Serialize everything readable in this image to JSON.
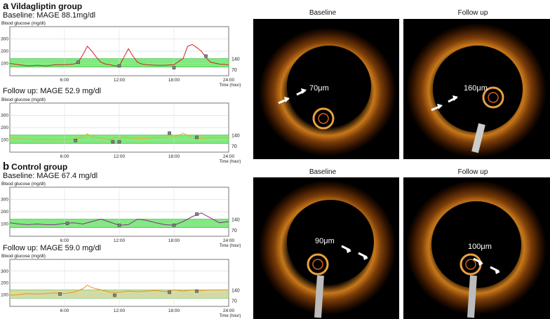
{
  "figure": {
    "panel_a": {
      "letter": "a",
      "group": "Vildagliptin group",
      "baseline_title": "Baseline: MAGE 88.1mg/dl",
      "followup_title": "Follow up: MAGE 52.9 mg/dl",
      "oct_baseline_label": "Baseline",
      "oct_followup_label": "Follow up",
      "oct_baseline_measure": "70μm",
      "oct_followup_measure": "160μm"
    },
    "panel_b": {
      "letter": "b",
      "group": "Control group",
      "baseline_title": "Baseline: MAGE 67.4 mg/dl",
      "followup_title": "Follow up: MAGE 59.0 mg/dl",
      "oct_baseline_label": "Baseline",
      "oct_followup_label": "Follow up",
      "oct_baseline_measure": "90μm",
      "oct_followup_measure": "100μm"
    },
    "axis": {
      "ylabel": "Blood glucose (mg/dl)",
      "xlabel": "Time (hour)",
      "yticks": [
        "100",
        "200",
        "300"
      ],
      "xticks": [
        "6:00",
        "12:00",
        "18:00",
        "24:00"
      ],
      "band_labels": [
        "140",
        "70"
      ]
    }
  },
  "chart_data": [
    {
      "type": "line",
      "title": "Baseline: MAGE 88.1mg/dl",
      "xlabel": "Time (hour)",
      "ylabel": "Blood glucose (mg/dl)",
      "xlim": [
        0,
        24
      ],
      "ylim": [
        0,
        400
      ],
      "target_range": [
        70,
        140
      ],
      "line_color": "#d42020",
      "band_color": "#7fea7f",
      "x": [
        0,
        1,
        2,
        3,
        4,
        5,
        6,
        7,
        7.5,
        8,
        8.5,
        9,
        9.5,
        10,
        10.5,
        11,
        11.5,
        12,
        12.5,
        13,
        13.5,
        14,
        14.5,
        15,
        16,
        17,
        18,
        19,
        19.5,
        20,
        20.5,
        21,
        21.5,
        22,
        23,
        24
      ],
      "y": [
        100,
        90,
        80,
        85,
        80,
        90,
        90,
        95,
        110,
        170,
        240,
        200,
        150,
        110,
        95,
        90,
        80,
        80,
        150,
        220,
        160,
        110,
        95,
        90,
        85,
        85,
        90,
        140,
        240,
        255,
        230,
        200,
        150,
        110,
        95,
        90
      ],
      "markers": [
        {
          "x": 7.5,
          "y": 110
        },
        {
          "x": 12,
          "y": 80
        },
        {
          "x": 18,
          "y": 65
        },
        {
          "x": 21.5,
          "y": 160
        }
      ]
    },
    {
      "type": "line",
      "title": "Follow up: MAGE 52.9 mg/dl",
      "xlabel": "Time (hour)",
      "ylabel": "Blood glucose (mg/dl)",
      "xlim": [
        0,
        24
      ],
      "ylim": [
        0,
        400
      ],
      "target_range": [
        70,
        140
      ],
      "line_color": "#e8b020",
      "band_color": "#7fea7f",
      "x": [
        0,
        1,
        2,
        3,
        4,
        5,
        6,
        7,
        8,
        8.5,
        9,
        10,
        11,
        11.5,
        12,
        12.5,
        13,
        14,
        15,
        16,
        17,
        17.5,
        18,
        19,
        20,
        21,
        22,
        23,
        24
      ],
      "y": [
        110,
        108,
        105,
        100,
        102,
        100,
        100,
        105,
        120,
        150,
        125,
        115,
        100,
        120,
        115,
        125,
        118,
        110,
        112,
        120,
        118,
        140,
        120,
        155,
        120,
        110,
        120,
        118,
        120
      ],
      "markers": [
        {
          "x": 7.2,
          "y": 95
        },
        {
          "x": 11.3,
          "y": 85
        },
        {
          "x": 12,
          "y": 85
        },
        {
          "x": 17.5,
          "y": 155
        },
        {
          "x": 20.5,
          "y": 120
        }
      ]
    },
    {
      "type": "line",
      "title": "Baseline: MAGE 67.4 mg/dl",
      "xlabel": "Time (hour)",
      "ylabel": "Blood glucose (mg/dl)",
      "xlim": [
        0,
        24
      ],
      "ylim": [
        0,
        400
      ],
      "target_range": [
        70,
        140
      ],
      "line_color": "#8a2a8a",
      "band_color": "#7fea7f",
      "x": [
        0,
        1,
        2,
        3,
        4,
        5,
        6,
        7,
        8,
        9,
        10,
        11,
        12,
        13,
        14,
        15,
        16,
        17,
        18,
        19,
        20,
        21,
        22,
        23,
        24
      ],
      "y": [
        110,
        100,
        95,
        100,
        95,
        95,
        105,
        110,
        100,
        120,
        140,
        115,
        90,
        95,
        140,
        130,
        110,
        95,
        90,
        120,
        160,
        190,
        150,
        110,
        120
      ],
      "markers": [
        {
          "x": 6.3,
          "y": 105
        },
        {
          "x": 12,
          "y": 90
        },
        {
          "x": 18,
          "y": 90
        },
        {
          "x": 20.5,
          "y": 180
        }
      ]
    },
    {
      "type": "line",
      "title": "Follow up: MAGE 59.0 mg/dl",
      "xlabel": "Time (hour)",
      "ylabel": "Blood glucose (mg/dl)",
      "xlim": [
        0,
        24
      ],
      "ylim": [
        0,
        400
      ],
      "target_range": [
        70,
        140
      ],
      "line_color": "#f0901a",
      "band_color": "#d4dc9e",
      "x": [
        0,
        1,
        2,
        3,
        4,
        5,
        6,
        7,
        8,
        8.5,
        9,
        10,
        11,
        12,
        13,
        14,
        15,
        16,
        17,
        18,
        19,
        20,
        21,
        22,
        23,
        24
      ],
      "y": [
        95,
        100,
        110,
        105,
        110,
        115,
        110,
        120,
        150,
        180,
        160,
        140,
        120,
        120,
        130,
        125,
        130,
        135,
        125,
        140,
        130,
        140,
        135,
        140,
        140,
        140
      ],
      "markers": [
        {
          "x": 5.5,
          "y": 105
        },
        {
          "x": 11.5,
          "y": 95
        },
        {
          "x": 17.5,
          "y": 120
        },
        {
          "x": 20.5,
          "y": 130
        }
      ]
    }
  ]
}
